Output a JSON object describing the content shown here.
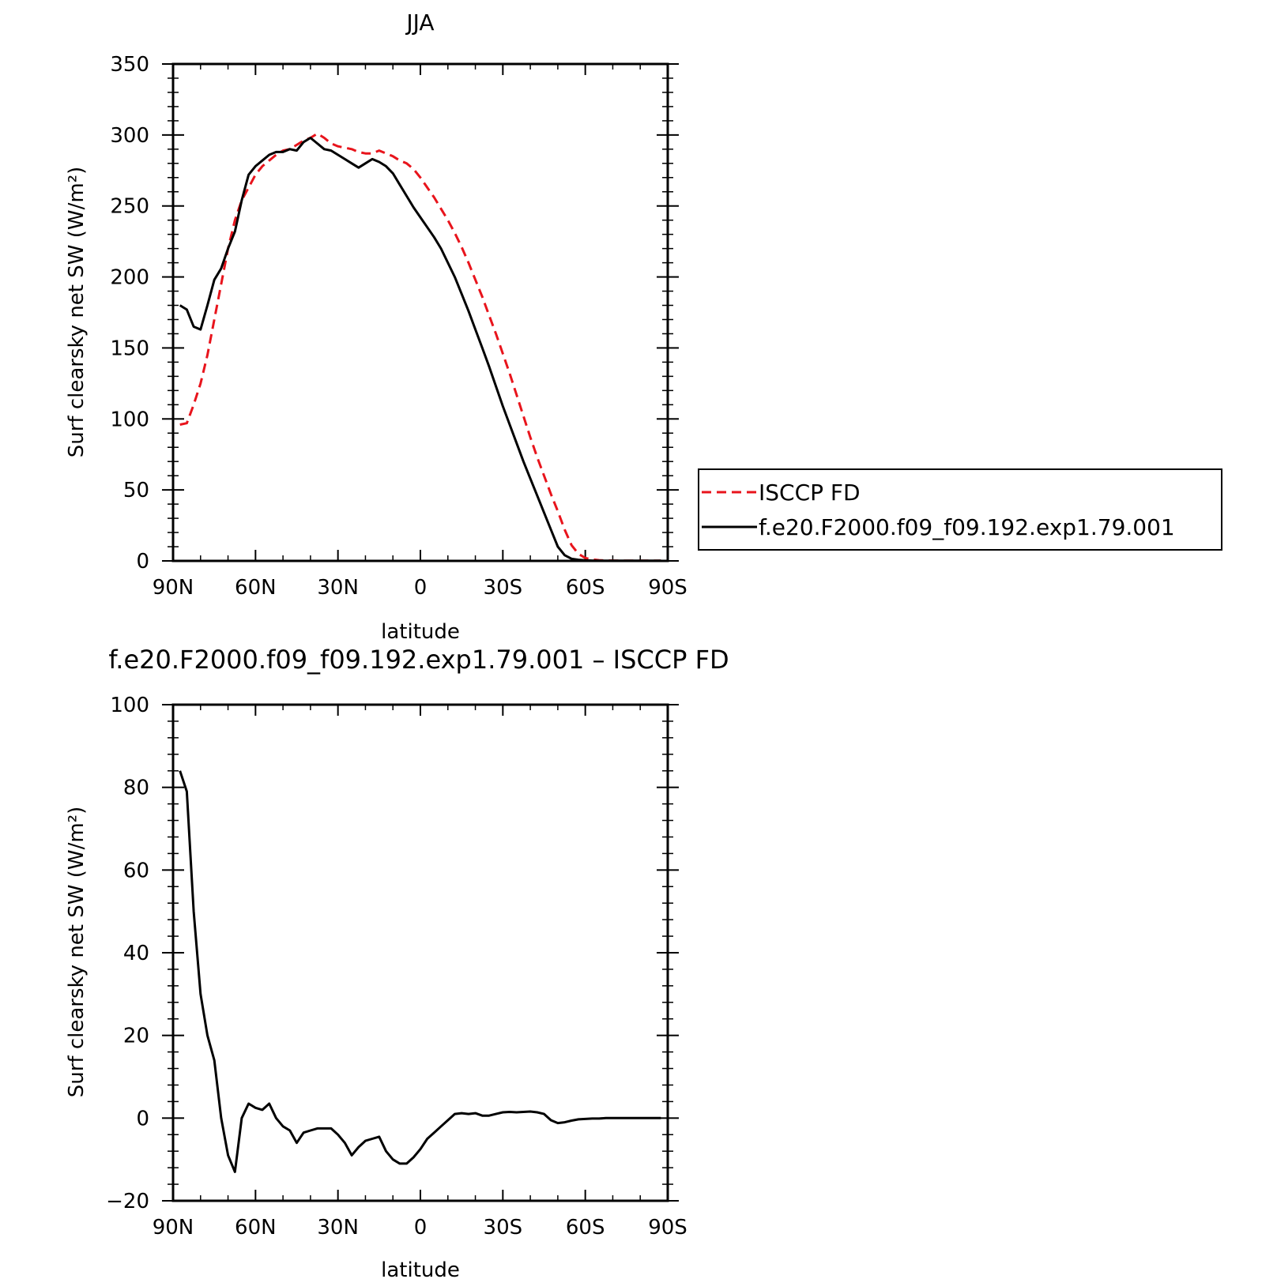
{
  "chart_data": [
    {
      "type": "line",
      "title": "JJA",
      "xlabel": "latitude",
      "ylabel": "Surf clearsky net SW (W/m²)",
      "xlim": [
        -90,
        90
      ],
      "ylim": [
        0,
        350
      ],
      "x_direction": "north-to-south",
      "x_ticks": [
        {
          "value": -90,
          "label": "90N"
        },
        {
          "value": -60,
          "label": "60N"
        },
        {
          "value": -30,
          "label": "30N"
        },
        {
          "value": 0,
          "label": "0"
        },
        {
          "value": 30,
          "label": "30S"
        },
        {
          "value": 60,
          "label": "60S"
        },
        {
          "value": 90,
          "label": "90S"
        }
      ],
      "y_ticks": [
        0,
        50,
        100,
        150,
        200,
        250,
        300,
        350
      ],
      "grid": false,
      "legend": {
        "placement": "right, outside plot, near bottom"
      },
      "series": [
        {
          "name": "ISCCP FD",
          "color": "#e8141c",
          "dash": "dashed",
          "x": [
            -87.5,
            -85,
            -82.5,
            -80,
            -77.5,
            -75,
            -72.5,
            -70,
            -67.5,
            -65,
            -62.5,
            -60,
            -57.5,
            -55,
            -52.5,
            -50,
            -47.5,
            -45,
            -42.5,
            -40,
            -37.5,
            -35,
            -32.5,
            -30,
            -27.5,
            -25,
            -22.5,
            -20,
            -17.5,
            -15,
            -12.5,
            -10,
            -7.5,
            -5,
            -2.5,
            0,
            2.5,
            5,
            7.5,
            10,
            12.5,
            15,
            17.5,
            20,
            22.5,
            25,
            27.5,
            30,
            32.5,
            35,
            37.5,
            40,
            42.5,
            45,
            47.5,
            50,
            52.5,
            55,
            57.5,
            60,
            62.5,
            65,
            67.5,
            70,
            72.5,
            75,
            77.5,
            80,
            82.5,
            85,
            87.5
          ],
          "y": [
            96,
            97,
            110,
            125,
            145,
            170,
            195,
            220,
            240,
            254,
            263,
            272,
            278,
            282,
            286,
            289,
            290,
            293,
            296,
            298,
            301,
            298,
            294,
            292,
            291,
            290,
            288,
            287,
            287,
            289,
            287,
            285,
            282,
            280,
            276,
            270,
            263,
            256,
            248,
            240,
            231,
            221,
            210,
            198,
            186,
            173,
            160,
            146,
            132,
            117,
            102,
            87,
            73,
            60,
            47,
            35,
            22,
            11,
            5,
            2,
            1,
            0.5,
            0.3,
            0.2,
            0.1,
            0.1,
            0.1,
            0.1,
            0.1,
            0.1,
            0.1
          ]
        },
        {
          "name": "f.e20.F2000.f09_f09.192.exp1.79.001",
          "color": "#000000",
          "dash": "solid",
          "x": [
            -87.5,
            -85,
            -82.5,
            -80,
            -77.5,
            -75,
            -72.5,
            -70,
            -67.5,
            -65,
            -62.5,
            -60,
            -57.5,
            -55,
            -52.5,
            -50,
            -47.5,
            -45,
            -42.5,
            -40,
            -37.5,
            -35,
            -32.5,
            -30,
            -27.5,
            -25,
            -22.5,
            -20,
            -17.5,
            -15,
            -12.5,
            -10,
            -7.5,
            -5,
            -2.5,
            0,
            2.5,
            5,
            7.5,
            10,
            12.5,
            15,
            17.5,
            20,
            22.5,
            25,
            27.5,
            30,
            32.5,
            35,
            37.5,
            40,
            42.5,
            45,
            47.5,
            50,
            52.5,
            55,
            57.5,
            60,
            62.5,
            65,
            67.5,
            70,
            72.5,
            75,
            77.5,
            80,
            82.5,
            85,
            87.5
          ],
          "y": [
            180,
            177,
            165,
            163,
            180,
            198,
            206,
            220,
            232,
            254,
            272,
            278,
            282,
            286,
            288,
            288,
            290,
            289,
            295,
            298,
            294,
            290,
            289,
            286,
            283,
            280,
            277,
            280,
            283,
            281,
            278,
            273,
            265,
            257,
            249,
            242,
            235,
            228,
            220,
            210,
            200,
            188,
            176,
            163,
            150,
            137,
            123,
            109,
            96,
            83,
            70,
            58,
            46,
            34,
            22,
            10,
            4,
            1.5,
            0.8,
            0.4,
            0.2,
            0.1,
            0.1,
            0.1,
            0.1,
            0.1,
            0.1,
            0.1,
            0.1,
            0.1,
            0.1
          ]
        }
      ]
    },
    {
      "type": "line",
      "title": "f.e20.F2000.f09_f09.192.exp1.79.001 – ISCCP FD",
      "xlabel": "latitude",
      "ylabel": "Surf clearsky net SW (W/m²)",
      "xlim": [
        -90,
        90
      ],
      "ylim": [
        -20,
        100
      ],
      "x_direction": "north-to-south",
      "x_ticks": [
        {
          "value": -90,
          "label": "90N"
        },
        {
          "value": -60,
          "label": "60N"
        },
        {
          "value": -30,
          "label": "30N"
        },
        {
          "value": 0,
          "label": "0"
        },
        {
          "value": 30,
          "label": "30S"
        },
        {
          "value": 60,
          "label": "60S"
        },
        {
          "value": 90,
          "label": "90S"
        }
      ],
      "y_ticks": [
        -20,
        0,
        20,
        40,
        60,
        80,
        100
      ],
      "grid": false,
      "series": [
        {
          "color": "#000000",
          "dash": "solid",
          "x": [
            -87.5,
            -85,
            -82.5,
            -80,
            -77.5,
            -75,
            -72.5,
            -70,
            -67.5,
            -65,
            -62.5,
            -60,
            -57.5,
            -55,
            -52.5,
            -50,
            -47.5,
            -45,
            -42.5,
            -40,
            -37.5,
            -35,
            -32.5,
            -30,
            -27.5,
            -25,
            -22.5,
            -20,
            -17.5,
            -15,
            -12.5,
            -10,
            -7.5,
            -5,
            -2.5,
            0,
            2.5,
            5,
            7.5,
            10,
            12.5,
            15,
            17.5,
            20,
            22.5,
            25,
            27.5,
            30,
            32.5,
            35,
            37.5,
            40,
            42.5,
            45,
            47.5,
            50,
            52.5,
            55,
            57.5,
            60,
            62.5,
            65,
            67.5,
            70,
            72.5,
            75,
            77.5,
            80,
            82.5,
            85,
            87.5
          ],
          "y": [
            84,
            79,
            50,
            30,
            20,
            14,
            0,
            -9,
            -13,
            0,
            3.5,
            2.5,
            2,
            3.5,
            0,
            -2,
            -3,
            -6,
            -3.5,
            -3,
            -2.5,
            -2.5,
            -2.5,
            -4,
            -6,
            -9,
            -7,
            -5.5,
            -5,
            -4.5,
            -8,
            -10,
            -11,
            -11,
            -9.5,
            -7.5,
            -5,
            -3.5,
            -2,
            -0.5,
            1,
            1.2,
            1,
            1.2,
            0.6,
            0.6,
            1,
            1.4,
            1.5,
            1.4,
            1.5,
            1.6,
            1.4,
            1,
            -0.5,
            -1.2,
            -1,
            -0.6,
            -0.3,
            -0.2,
            -0.1,
            -0.1,
            0,
            0,
            0,
            0,
            0,
            0,
            0,
            0,
            0
          ]
        }
      ]
    }
  ]
}
